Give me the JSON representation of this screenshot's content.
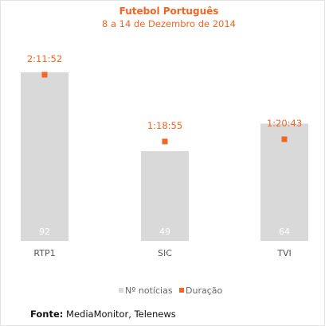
{
  "chart_data": {
    "type": "bar",
    "title": "Futebol Português",
    "subtitle": "8 a 14 de Dezembro de 2014",
    "categories": [
      "RTP1",
      "SIC",
      "TVI"
    ],
    "series": [
      {
        "name": "Nº notícias",
        "values": [
          92,
          49,
          64
        ],
        "color": "#d9d9d9"
      },
      {
        "name": "Duração",
        "values": [
          "2:11:52",
          "1:18:55",
          "1:20:43"
        ],
        "color": "#f26522"
      }
    ],
    "legend_position": "bottom-center",
    "grid": false
  },
  "source": {
    "label": "Fonte:",
    "text": "MediaMonitor, Telenews"
  }
}
